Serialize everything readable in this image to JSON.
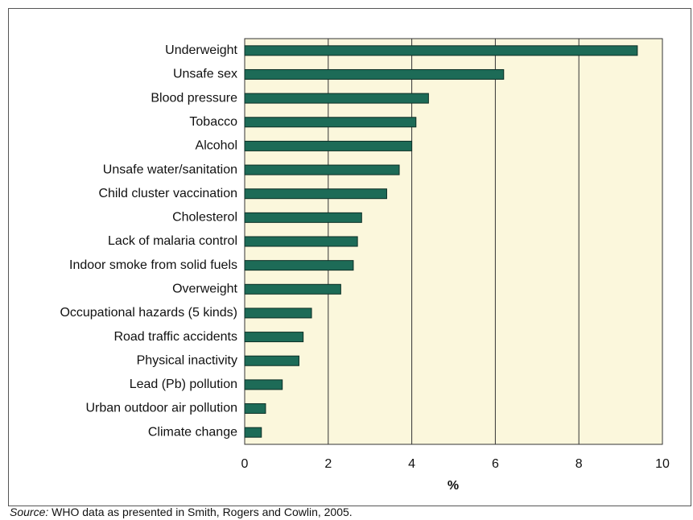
{
  "chart_data": {
    "type": "bar",
    "orientation": "horizontal",
    "categories": [
      "Underweight",
      "Unsafe sex",
      "Blood pressure",
      "Tobacco",
      "Alcohol",
      "Unsafe water/sanitation",
      "Child cluster vaccination",
      "Cholesterol",
      "Lack of malaria control",
      "Indoor smoke from solid fuels",
      "Overweight",
      "Occupational hazards (5 kinds)",
      "Road traffic accidents",
      "Physical inactivity",
      "Lead (Pb) pollution",
      "Urban outdoor air pollution",
      "Climate change"
    ],
    "values": [
      9.4,
      6.2,
      4.4,
      4.1,
      4.0,
      3.7,
      3.4,
      2.8,
      2.7,
      2.6,
      2.3,
      1.6,
      1.4,
      1.3,
      0.9,
      0.5,
      0.4
    ],
    "color": "#1d6b57",
    "xlim": [
      0,
      10
    ],
    "xticks": [
      0,
      2,
      4,
      6,
      8,
      10
    ],
    "xlabel": "%",
    "grid": true,
    "source_label": "Source:",
    "source": "WHO data as presented in Smith, Rogers and Cowlin, 2005."
  }
}
